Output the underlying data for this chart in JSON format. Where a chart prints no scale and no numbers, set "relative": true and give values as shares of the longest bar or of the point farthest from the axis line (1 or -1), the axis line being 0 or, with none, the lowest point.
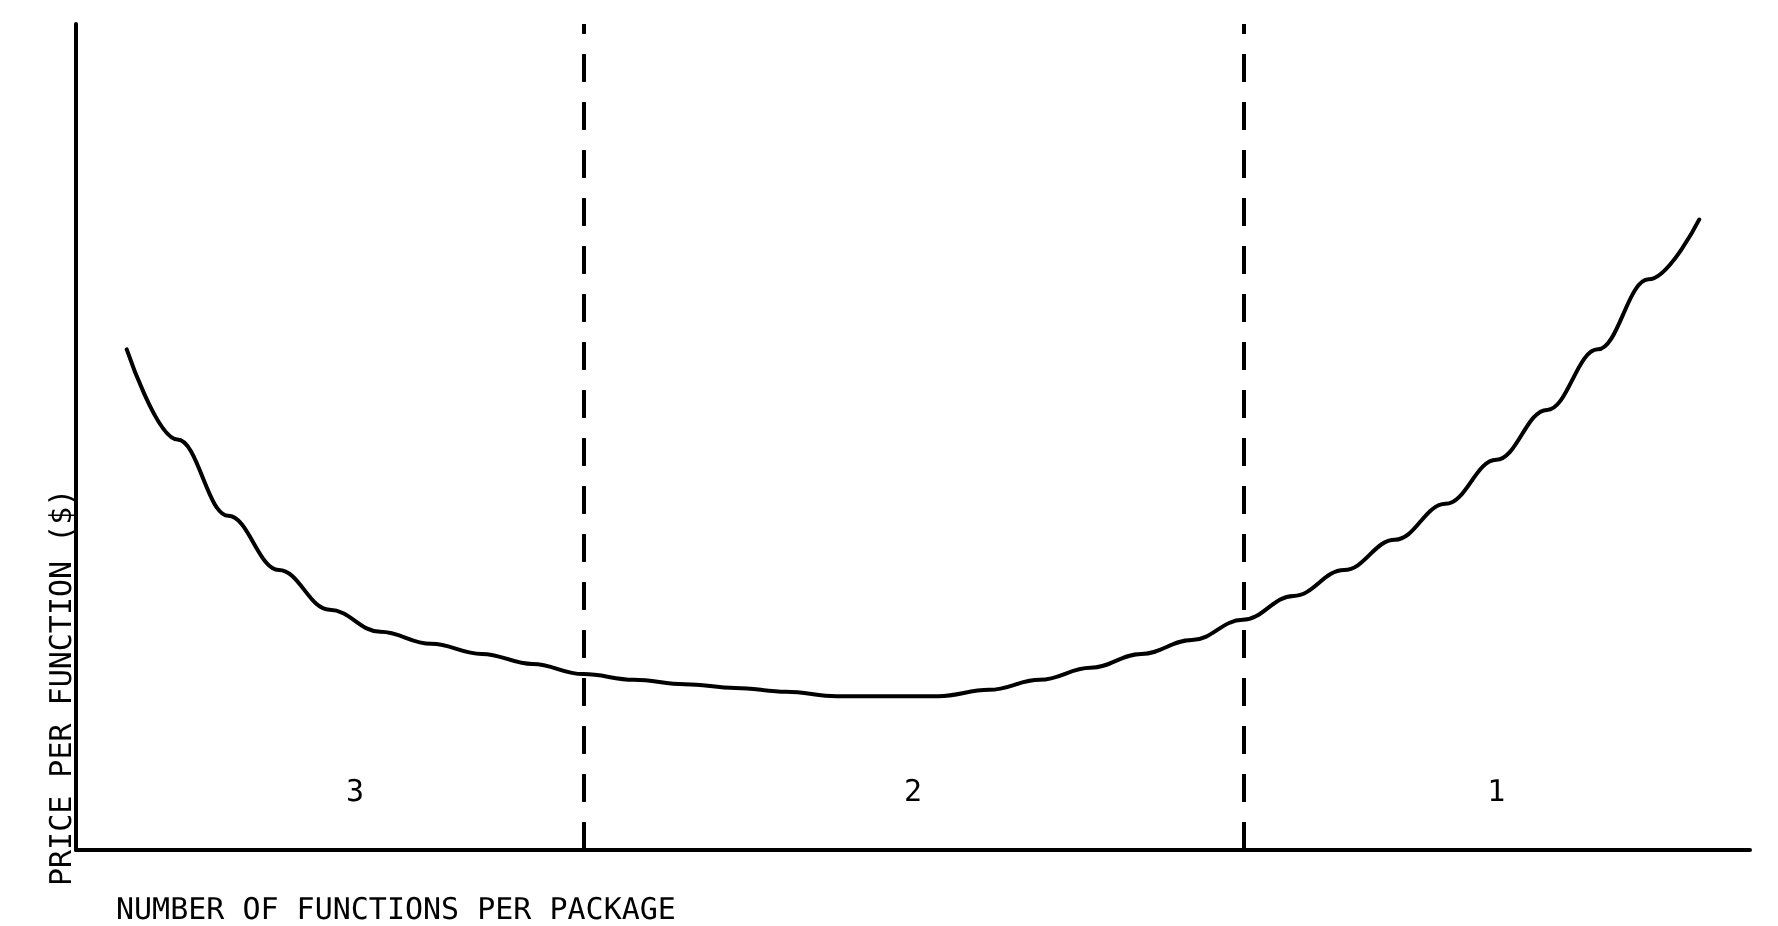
{
  "chart_data": {
    "type": "line",
    "relative": true,
    "ylabel": "PRICE PER FUNCTION ($)",
    "xlabel": "NUMBER OF FUNCTIONS PER PACKAGE",
    "categories": [
      null,
      null,
      null,
      null,
      null,
      null,
      null,
      null,
      null,
      null,
      null,
      null,
      null,
      null,
      null,
      null,
      null,
      null,
      null,
      null,
      null,
      null,
      null,
      null,
      null,
      null,
      null,
      null,
      null,
      null,
      null,
      null,
      null,
      null
    ],
    "series": [
      {
        "color": "#000000",
        "values": [
          null,
          0.794,
          0.651,
          0.53,
          0.444,
          0.381,
          0.346,
          0.327,
          0.311,
          0.295,
          0.279,
          0.27,
          0.263,
          0.257,
          0.251,
          0.244,
          0.244,
          0.244,
          0.254,
          0.27,
          0.289,
          0.311,
          0.333,
          0.365,
          0.403,
          0.444,
          0.492,
          0.549,
          0.619,
          0.698,
          0.794,
          0.905,
          1,
          null
        ]
      }
    ],
    "annotations": [
      "3",
      "2",
      "1"
    ],
    "marker": "none",
    "line_style": "solid",
    "grid": false
  }
}
